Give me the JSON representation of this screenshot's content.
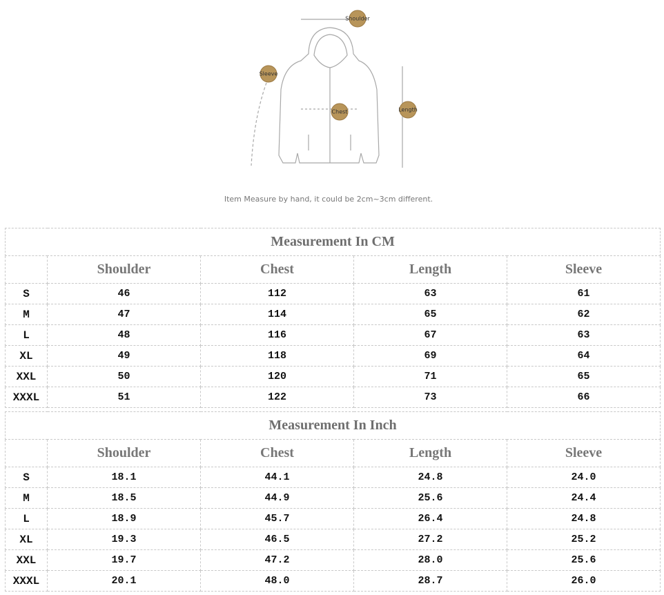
{
  "diagram": {
    "labels": [
      "Shoulder",
      "Sleeve",
      "Chest",
      "Length"
    ],
    "note": "Item Measure by hand, it could be 2cm~3cm different."
  },
  "tables": [
    {
      "title": "Measurement In CM",
      "columns": [
        "Shoulder",
        "Chest",
        "Length",
        "Sleeve"
      ],
      "rows": [
        [
          "S",
          "46",
          "112",
          "63",
          "61"
        ],
        [
          "M",
          "47",
          "114",
          "65",
          "62"
        ],
        [
          "L",
          "48",
          "116",
          "67",
          "63"
        ],
        [
          "XL",
          "49",
          "118",
          "69",
          "64"
        ],
        [
          "XXL",
          "50",
          "120",
          "71",
          "65"
        ],
        [
          "XXXL",
          "51",
          "122",
          "73",
          "66"
        ]
      ]
    },
    {
      "title": "Measurement In Inch",
      "columns": [
        "Shoulder",
        "Chest",
        "Length",
        "Sleeve"
      ],
      "rows": [
        [
          "S",
          "18.1",
          "44.1",
          "24.8",
          "24.0"
        ],
        [
          "M",
          "18.5",
          "44.9",
          "25.6",
          "24.4"
        ],
        [
          "L",
          "18.9",
          "45.7",
          "26.4",
          "24.8"
        ],
        [
          "XL",
          "19.3",
          "46.5",
          "27.2",
          "25.2"
        ],
        [
          "XXL",
          "19.7",
          "47.2",
          "28.0",
          "25.6"
        ],
        [
          "XXXL",
          "20.1",
          "48.0",
          "28.7",
          "26.0"
        ]
      ]
    }
  ]
}
